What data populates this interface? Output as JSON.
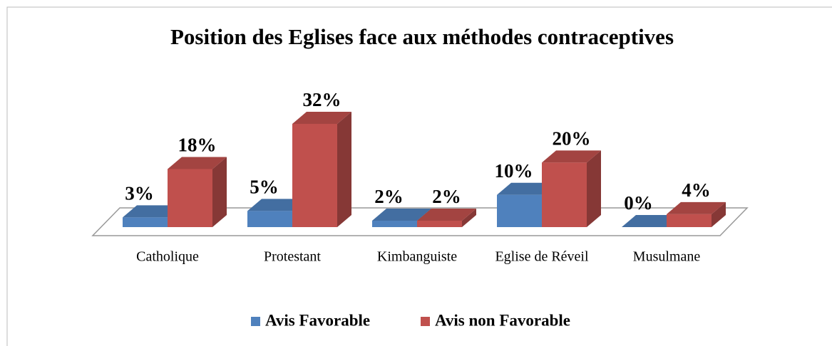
{
  "chart_data": {
    "type": "bar3d",
    "title": "Position des Eglises face aux méthodes contraceptives",
    "categories": [
      "Catholique",
      "Protestant",
      "Kimbanguiste",
      "Eglise de Réveil",
      "Musulmane"
    ],
    "series": [
      {
        "name": "Avis Favorable",
        "color": "#4f81bd",
        "values": [
          3,
          5,
          2,
          10,
          0
        ],
        "value_labels": [
          "3%",
          "5%",
          "2%",
          "10%",
          "0%"
        ]
      },
      {
        "name": "Avis non Favorable",
        "color": "#c0504d",
        "values": [
          18,
          32,
          2,
          20,
          4
        ],
        "value_labels": [
          "18%",
          "32%",
          "2%",
          "20%",
          "4%"
        ]
      }
    ],
    "legend": "bottom"
  }
}
